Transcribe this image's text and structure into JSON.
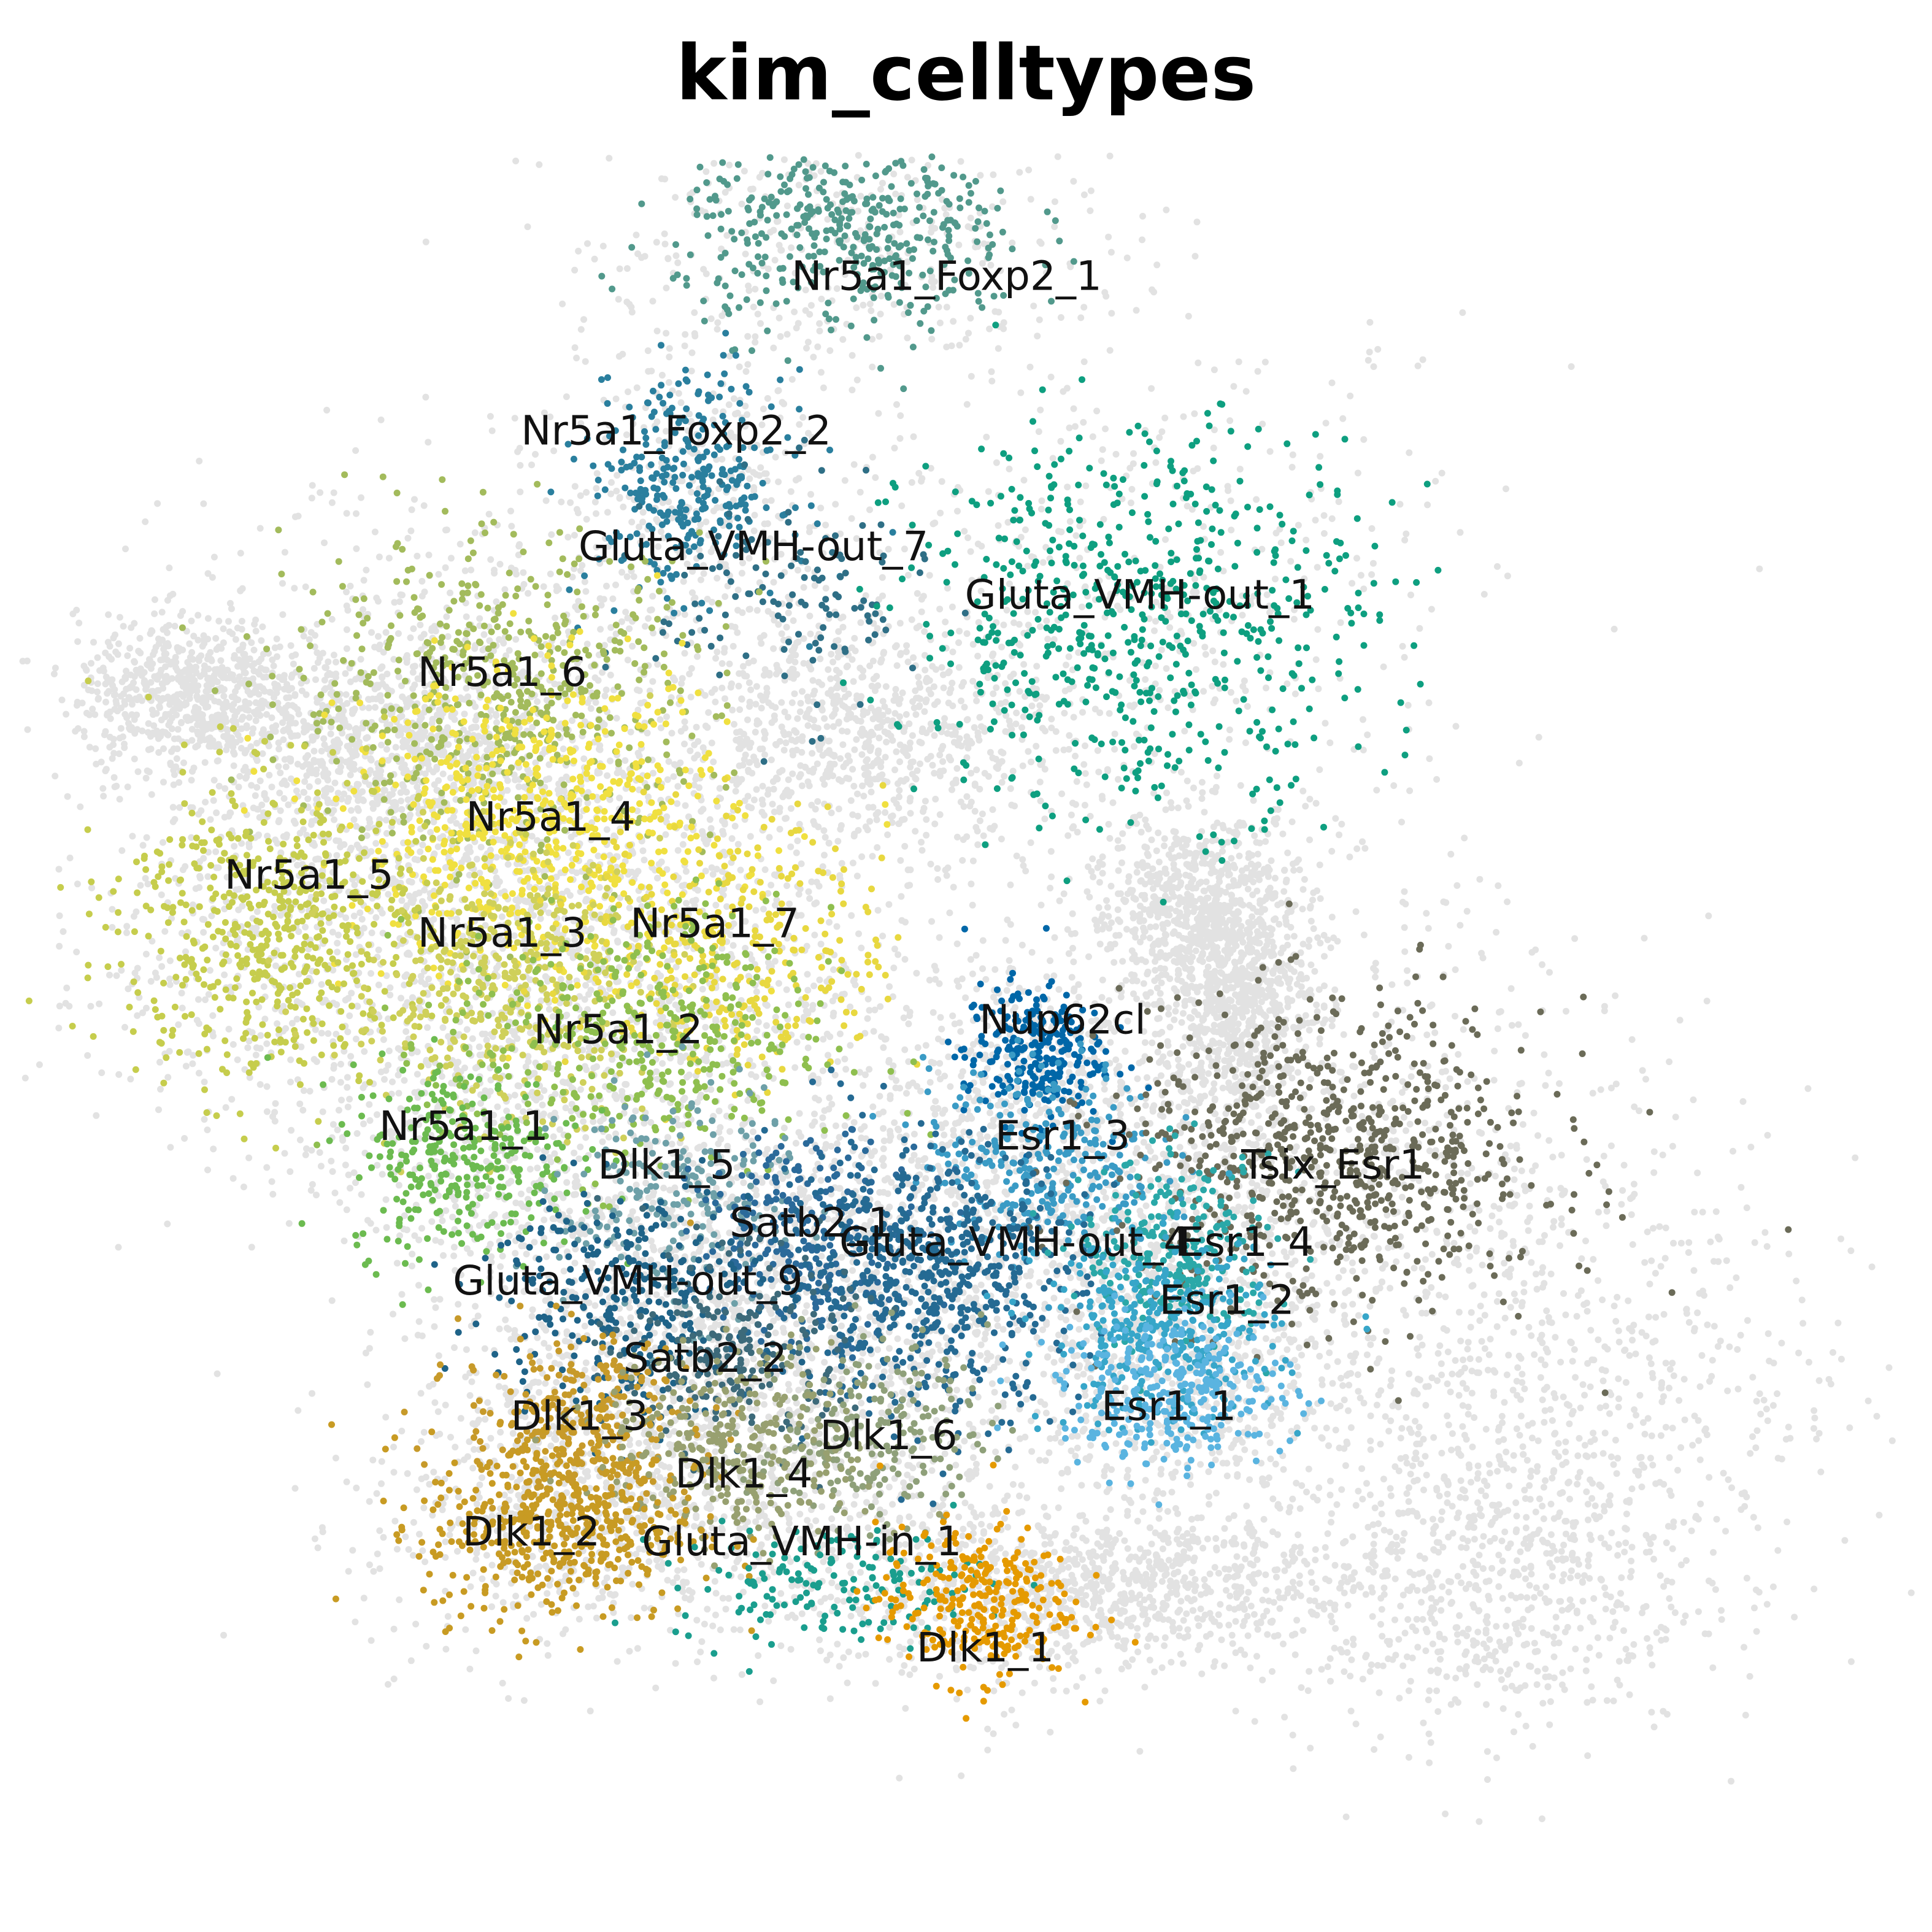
{
  "chart_data": {
    "type": "scatter",
    "title": "kim_celltypes",
    "xlabel": "",
    "ylabel": "",
    "grid": false,
    "legend": "none",
    "xlim": [
      0,
      100
    ],
    "ylim": [
      0,
      100
    ],
    "background_color": "#e2e2e2",
    "series": [
      {
        "name": "Nr5a1_Foxp2_1",
        "color": "#52998c",
        "center": [
          44,
          88
        ],
        "spread": [
          4.5,
          2.6
        ],
        "count": 420
      },
      {
        "name": "Nr5a1_Foxp2_2",
        "color": "#2a7f9e",
        "center": [
          35.5,
          75
        ],
        "spread": [
          2.5,
          2.8
        ],
        "count": 300
      },
      {
        "name": "Gluta_VMH-out_7",
        "color": "#2f6f86",
        "center": [
          41,
          69
        ],
        "spread": [
          3.5,
          3
        ],
        "count": 120
      },
      {
        "name": "Gluta_VMH-out_1",
        "color": "#0e9f80",
        "center": [
          59,
          68
        ],
        "spread": [
          6,
          5
        ],
        "count": 620
      },
      {
        "name": "Nr5a1_6",
        "color": "#a3bb5c",
        "center": [
          26,
          64
        ],
        "spread": [
          5.5,
          4
        ],
        "count": 560
      },
      {
        "name": "Nr5a1_4",
        "color": "#f0e040",
        "center": [
          28,
          57
        ],
        "spread": [
          5,
          4
        ],
        "count": 620
      },
      {
        "name": "Nr5a1_5",
        "color": "#c6cd4d",
        "center": [
          14,
          52
        ],
        "spread": [
          4,
          4
        ],
        "count": 560
      },
      {
        "name": "Nr5a1_3",
        "color": "#cfd05a",
        "center": [
          26,
          49
        ],
        "spread": [
          4,
          3.5
        ],
        "count": 420
      },
      {
        "name": "Nr5a1_7",
        "color": "#e8d840",
        "center": [
          38,
          51
        ],
        "spread": [
          4,
          3.5
        ],
        "count": 320
      },
      {
        "name": "Nr5a1_2",
        "color": "#8fbf4f",
        "center": [
          33,
          46
        ],
        "spread": [
          5,
          3.5
        ],
        "count": 420
      },
      {
        "name": "Nr5a1_1",
        "color": "#6cbb50",
        "center": [
          24,
          40
        ],
        "spread": [
          3,
          2.5
        ],
        "count": 300
      },
      {
        "name": "Nup62cl",
        "color": "#0067a8",
        "center": [
          53.5,
          45.5
        ],
        "spread": [
          1.8,
          1.8
        ],
        "count": 260
      },
      {
        "name": "Esr1_3",
        "color": "#3a9bc5",
        "center": [
          54,
          40
        ],
        "spread": [
          3,
          2.5
        ],
        "count": 300
      },
      {
        "name": "Tsix_Esr1",
        "color": "#6b6b58",
        "center": [
          69,
          40
        ],
        "spread": [
          5.5,
          4
        ],
        "count": 760
      },
      {
        "name": "Dlk1_5",
        "color": "#6ea0a8",
        "center": [
          35,
          38
        ],
        "spread": [
          3,
          3
        ],
        "count": 220
      },
      {
        "name": "Satb2_1",
        "color": "#2b6a9a",
        "center": [
          42,
          36
        ],
        "spread": [
          3,
          2.5
        ],
        "count": 260
      },
      {
        "name": "Gluta_VMH-out_4",
        "color": "#256a93",
        "center": [
          48,
          34
        ],
        "spread": [
          4,
          3.5
        ],
        "count": 620
      },
      {
        "name": "Esr1_4",
        "color": "#2aa8a8",
        "center": [
          61,
          35
        ],
        "spread": [
          2.5,
          2.5
        ],
        "count": 260
      },
      {
        "name": "Esr1_2",
        "color": "#37a6c9",
        "center": [
          60,
          31
        ],
        "spread": [
          3,
          2.5
        ],
        "count": 320
      },
      {
        "name": "Esr1_1",
        "color": "#5ab4e0",
        "center": [
          61,
          28
        ],
        "spread": [
          3,
          2
        ],
        "count": 300
      },
      {
        "name": "Gluta_VMH-out_9",
        "color": "#1f6388",
        "center": [
          32,
          33
        ],
        "spread": [
          3.5,
          3
        ],
        "count": 300
      },
      {
        "name": "Satb2_2",
        "color": "#3d6a7a",
        "center": [
          38,
          30
        ],
        "spread": [
          3,
          2.5
        ],
        "count": 220
      },
      {
        "name": "Dlk1_3",
        "color": "#c79a2a",
        "center": [
          30,
          26
        ],
        "spread": [
          3,
          2.5
        ],
        "count": 300
      },
      {
        "name": "Dlk1_6",
        "color": "#8fa07a",
        "center": [
          45,
          26
        ],
        "spread": [
          3,
          2.5
        ],
        "count": 220
      },
      {
        "name": "Dlk1_4",
        "color": "#98a070",
        "center": [
          38,
          25
        ],
        "spread": [
          3.5,
          2.5
        ],
        "count": 300
      },
      {
        "name": "Dlk1_2",
        "color": "#c89b23",
        "center": [
          29,
          21
        ],
        "spread": [
          3.5,
          2.5
        ],
        "count": 460
      },
      {
        "name": "Gluta_VMH-in_1",
        "color": "#1a9e8e",
        "center": [
          43,
          18
        ],
        "spread": [
          4,
          1.5
        ],
        "count": 160
      },
      {
        "name": "Dlk1_1",
        "color": "#e59a00",
        "center": [
          50.5,
          17
        ],
        "spread": [
          2.5,
          2
        ],
        "count": 300
      }
    ],
    "annotations": [
      {
        "text": "Nr5a1_Foxp2_1",
        "x": 49,
        "y": 85
      },
      {
        "text": "Nr5a1_Foxp2_2",
        "x": 35,
        "y": 77
      },
      {
        "text": "Gluta_VMH-out_7",
        "x": 39,
        "y": 71
      },
      {
        "text": "Gluta_VMH-out_1",
        "x": 59,
        "y": 68.5
      },
      {
        "text": "Nr5a1_6",
        "x": 26,
        "y": 64.5
      },
      {
        "text": "Nr5a1_4",
        "x": 28.5,
        "y": 57
      },
      {
        "text": "Nr5a1_5",
        "x": 16,
        "y": 54
      },
      {
        "text": "Nr5a1_3",
        "x": 26,
        "y": 51
      },
      {
        "text": "Nr5a1_7",
        "x": 37,
        "y": 51.5
      },
      {
        "text": "Nr5a1_2",
        "x": 32,
        "y": 46
      },
      {
        "text": "Nup62cl",
        "x": 55,
        "y": 46.5
      },
      {
        "text": "Nr5a1_1",
        "x": 24,
        "y": 41
      },
      {
        "text": "Dlk1_5",
        "x": 34.5,
        "y": 39
      },
      {
        "text": "Esr1_3",
        "x": 55,
        "y": 40.5
      },
      {
        "text": "Tsix_Esr1",
        "x": 69,
        "y": 39
      },
      {
        "text": "Satb2_1",
        "x": 42,
        "y": 36
      },
      {
        "text": "Gluta_VMH-out_4",
        "x": 52.5,
        "y": 35
      },
      {
        "text": "Esr1_4",
        "x": 64.5,
        "y": 35
      },
      {
        "text": "Gluta_VMH-out_9",
        "x": 32.5,
        "y": 33
      },
      {
        "text": "Esr1_2",
        "x": 63.5,
        "y": 32
      },
      {
        "text": "Satb2_2",
        "x": 36.5,
        "y": 29
      },
      {
        "text": "Dlk1_3",
        "x": 30,
        "y": 26
      },
      {
        "text": "Esr1_1",
        "x": 60.5,
        "y": 26.5
      },
      {
        "text": "Dlk1_6",
        "x": 46,
        "y": 25
      },
      {
        "text": "Dlk1_4",
        "x": 38.5,
        "y": 23
      },
      {
        "text": "Dlk1_2",
        "x": 27.5,
        "y": 20
      },
      {
        "text": "Gluta_VMH-in_1",
        "x": 41.5,
        "y": 19.5
      },
      {
        "text": "Dlk1_1",
        "x": 51,
        "y": 14
      }
    ]
  }
}
